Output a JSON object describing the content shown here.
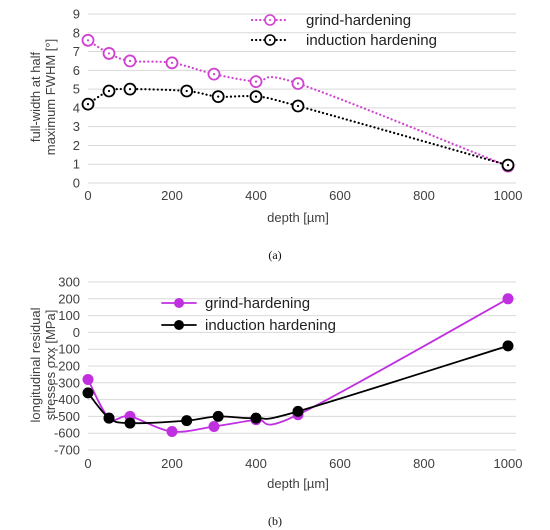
{
  "chart_data": [
    {
      "type": "line",
      "panel_label": "(a)",
      "xlabel": "depth [µm]",
      "ylabel_lines": [
        "full-width at half",
        "maximum FWHM [°]"
      ],
      "xlim": [
        0,
        1000
      ],
      "ylim": [
        0,
        9
      ],
      "xticks": [
        0,
        200,
        400,
        600,
        800,
        1000
      ],
      "yticks": [
        0,
        1,
        2,
        3,
        4,
        5,
        6,
        7,
        8,
        9
      ],
      "grid": "horizontal",
      "legend_position": "top-right",
      "series": [
        {
          "name": "grind-hardening",
          "color": "#d042d0",
          "line_style": "dotted",
          "marker": "open-circle-dot",
          "x": [
            0,
            50,
            100,
            200,
            300,
            400,
            500,
            1000
          ],
          "y": [
            7.6,
            6.9,
            6.5,
            6.4,
            5.8,
            5.4,
            5.3,
            0.9
          ]
        },
        {
          "name": "induction hardening",
          "color": "#000000",
          "line_style": "dotted",
          "marker": "open-circle-dot",
          "x": [
            0,
            50,
            100,
            235,
            310,
            400,
            500,
            1000
          ],
          "y": [
            4.2,
            4.9,
            5.0,
            4.9,
            4.6,
            4.6,
            4.1,
            0.95
          ]
        }
      ]
    },
    {
      "type": "line",
      "panel_label": "(b)",
      "xlabel": "depth [µm]",
      "ylabel_lines": [
        "longitudinal residual",
        "stresses σxx [MPa]"
      ],
      "xlim": [
        0,
        1000
      ],
      "ylim": [
        -700,
        300
      ],
      "xticks": [
        0,
        200,
        400,
        600,
        800,
        1000
      ],
      "yticks": [
        300,
        200,
        100,
        0,
        -100,
        -200,
        -300,
        -400,
        -500,
        -600,
        -700
      ],
      "grid": "horizontal",
      "legend_position": "top-left",
      "series": [
        {
          "name": "grind-hardening",
          "color": "#c030e0",
          "line_style": "solid",
          "marker": "filled-circle",
          "x": [
            0,
            50,
            100,
            200,
            300,
            400,
            500,
            1000
          ],
          "y": [
            -280,
            -510,
            -500,
            -590,
            -560,
            -520,
            -490,
            200
          ]
        },
        {
          "name": "induction hardening",
          "color": "#000000",
          "line_style": "solid",
          "marker": "filled-circle",
          "x": [
            0,
            50,
            100,
            235,
            310,
            400,
            500,
            1000
          ],
          "y": [
            -360,
            -510,
            -540,
            -525,
            -500,
            -510,
            -470,
            -80
          ]
        }
      ]
    }
  ]
}
